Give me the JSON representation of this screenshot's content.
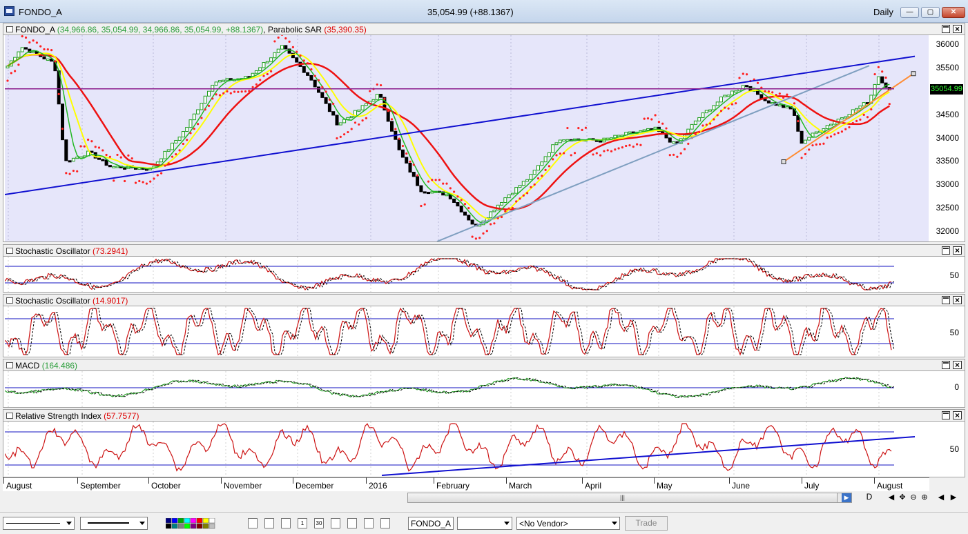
{
  "window": {
    "title": "FONDO_A",
    "quote": "35,054.99 (+88.1367)",
    "period": "Daily",
    "minimize": "—",
    "maximize": "▢",
    "close": "✕"
  },
  "colors": {
    "plot_bg": "#e6e6fa",
    "sma_fast": "#22b822",
    "sma_mid": "#ffff00",
    "sma_slow": "#ee1111",
    "sar": "#ff2222",
    "trendline": "#1010d0",
    "support": "#7f9fc0",
    "channel": "#ff8c33",
    "level": "#8b1a8b",
    "osc": "#cc1111",
    "macd": "#2aa12a"
  },
  "price_pane": {
    "label": "FONDO_A",
    "values": "(34,966.86, 35,054.99, 34,966.86, 35,054.99, +88.1367)",
    "indicator": "Parabolic SAR",
    "indicator_value": "(35,390.35)",
    "last_price_tag": "35054.99",
    "y_ticks": [
      "36000",
      "35500",
      "35000",
      "34500",
      "34000",
      "33500",
      "33000",
      "32500",
      "32000"
    ]
  },
  "stoch1_pane": {
    "label": "Stochastic Oscillator",
    "value": "(73.2941)",
    "y_ticks": [
      "50"
    ]
  },
  "stoch2_pane": {
    "label": "Stochastic Oscillator",
    "value": "(14.9017)",
    "y_ticks": [
      "50"
    ]
  },
  "macd_pane": {
    "label": "MACD",
    "value": "(164.486)",
    "y_ticks": [
      "0"
    ]
  },
  "rsi_pane": {
    "label": "Relative Strength Index",
    "value": "(57.7577)",
    "y_ticks": [
      "50"
    ]
  },
  "time_axis": {
    "months": [
      "August",
      "September",
      "October",
      "November",
      "December",
      "2016",
      "February",
      "March",
      "April",
      "May",
      "June",
      "July",
      "August"
    ],
    "interval_marker": "D"
  },
  "scrollbar": {
    "grip": "|||"
  },
  "nav": [
    "◀",
    "✥",
    "⊖",
    "⊕",
    "◀",
    "▶"
  ],
  "toolbar": {
    "symbol": "FONDO_A",
    "vendor": "<No Vendor>",
    "trade": "Trade"
  },
  "chart_data": {
    "type": "line",
    "title": "FONDO_A",
    "x": [
      "August",
      "September",
      "October",
      "November",
      "December",
      "2016",
      "February",
      "March",
      "April",
      "May",
      "June",
      "July",
      "August"
    ],
    "ylim": [
      31800,
      36200
    ],
    "series": [
      {
        "name": "FONDO_A",
        "values": [
          35600,
          33600,
          33400,
          35950,
          34600,
          34100,
          32100,
          32700,
          34000,
          34000,
          35150,
          33900,
          35054.99
        ]
      },
      {
        "name": "Parabolic SAR",
        "values": [
          35950,
          33500,
          33300,
          36000,
          35300,
          33700,
          32050,
          32200,
          34600,
          33950,
          35200,
          33900,
          35390.35
        ]
      }
    ],
    "indicators": {
      "stoch_1": 73.2941,
      "stoch_2": 14.9017,
      "macd": 164.486,
      "rsi": 57.7577
    }
  }
}
